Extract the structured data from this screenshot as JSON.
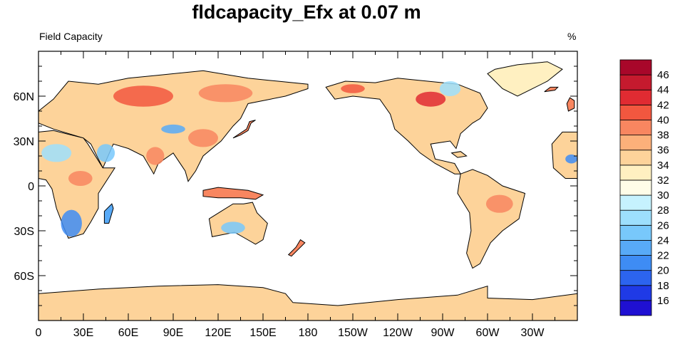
{
  "title": "fldcapacity_Efx at 0.07 m",
  "left_string": "Field Capacity",
  "right_string": "%",
  "x_ticks": [
    {
      "lon": 0,
      "label": "0"
    },
    {
      "lon": 30,
      "label": "30E"
    },
    {
      "lon": 60,
      "label": "60E"
    },
    {
      "lon": 90,
      "label": "90E"
    },
    {
      "lon": 120,
      "label": "120E"
    },
    {
      "lon": 150,
      "label": "150E"
    },
    {
      "lon": 180,
      "label": "180"
    },
    {
      "lon": 210,
      "label": "150W"
    },
    {
      "lon": 240,
      "label": "120W"
    },
    {
      "lon": 270,
      "label": "90W"
    },
    {
      "lon": 300,
      "label": "60W"
    },
    {
      "lon": 330,
      "label": "30W"
    }
  ],
  "y_ticks": [
    {
      "lat": 60,
      "label": "60N"
    },
    {
      "lat": 30,
      "label": "30N"
    },
    {
      "lat": 0,
      "label": "0"
    },
    {
      "lat": -30,
      "label": "30S"
    },
    {
      "lat": -60,
      "label": "60S"
    }
  ],
  "colorbar": {
    "labels": [
      "16",
      "18",
      "20",
      "22",
      "24",
      "26",
      "28",
      "30",
      "32",
      "34",
      "36",
      "38",
      "40",
      "42",
      "44",
      "46"
    ],
    "colors": [
      "#1f10d2",
      "#1f3ae6",
      "#2c64ef",
      "#3e8cf4",
      "#58aaf7",
      "#78c8fb",
      "#9ddffd",
      "#c6f2fe",
      "#fffde8",
      "#fff0c1",
      "#fdd39a",
      "#fcb07a",
      "#f88660",
      "#f2573f",
      "#e02b32",
      "#c51a2e",
      "#a8072a"
    ]
  },
  "land": [
    {
      "name": "antarctica",
      "color": "#fdd39a",
      "pts": [
        [
          0,
          -72
        ],
        [
          40,
          -69
        ],
        [
          80,
          -67
        ],
        [
          120,
          -66
        ],
        [
          150,
          -68
        ],
        [
          165,
          -72
        ],
        [
          170,
          -78
        ],
        [
          200,
          -80
        ],
        [
          240,
          -76
        ],
        [
          280,
          -73
        ],
        [
          300,
          -67
        ],
        [
          300,
          -75
        ],
        [
          330,
          -76
        ],
        [
          360,
          -72
        ],
        [
          360,
          -90
        ],
        [
          0,
          -90
        ]
      ]
    },
    {
      "name": "eurasia",
      "color": "#fdd39a",
      "pts": [
        [
          0,
          50
        ],
        [
          10,
          58
        ],
        [
          20,
          70
        ],
        [
          40,
          68
        ],
        [
          60,
          72
        ],
        [
          80,
          74
        ],
        [
          110,
          77
        ],
        [
          140,
          72
        ],
        [
          160,
          70
        ],
        [
          180,
          68
        ],
        [
          180,
          65
        ],
        [
          165,
          60
        ],
        [
          155,
          58
        ],
        [
          140,
          55
        ],
        [
          135,
          45
        ],
        [
          130,
          40
        ],
        [
          122,
          30
        ],
        [
          110,
          20
        ],
        [
          105,
          10
        ],
        [
          100,
          3
        ],
        [
          98,
          10
        ],
        [
          90,
          22
        ],
        [
          80,
          15
        ],
        [
          77,
          8
        ],
        [
          70,
          20
        ],
        [
          60,
          25
        ],
        [
          50,
          28
        ],
        [
          43,
          12
        ],
        [
          35,
          28
        ],
        [
          30,
          32
        ],
        [
          10,
          38
        ],
        [
          0,
          42
        ]
      ]
    },
    {
      "name": "africa",
      "color": "#fdd39a",
      "pts": [
        [
          0,
          36
        ],
        [
          10,
          37
        ],
        [
          30,
          32
        ],
        [
          33,
          28
        ],
        [
          43,
          12
        ],
        [
          51,
          12
        ],
        [
          40,
          -5
        ],
        [
          40,
          -15
        ],
        [
          35,
          -24
        ],
        [
          30,
          -32
        ],
        [
          20,
          -35
        ],
        [
          17,
          -28
        ],
        [
          12,
          -15
        ],
        [
          9,
          -2
        ],
        [
          5,
          4
        ],
        [
          0,
          5
        ]
      ]
    },
    {
      "name": "australia",
      "color": "#fdd39a",
      "pts": [
        [
          114,
          -22
        ],
        [
          122,
          -17
        ],
        [
          130,
          -12
        ],
        [
          137,
          -12
        ],
        [
          143,
          -11
        ],
        [
          146,
          -18
        ],
        [
          153,
          -25
        ],
        [
          150,
          -36
        ],
        [
          145,
          -39
        ],
        [
          138,
          -35
        ],
        [
          131,
          -31
        ],
        [
          116,
          -34
        ]
      ]
    },
    {
      "name": "north-america",
      "color": "#fdd39a",
      "pts": [
        [
          192,
          66
        ],
        [
          205,
          70
        ],
        [
          225,
          69
        ],
        [
          240,
          72
        ],
        [
          260,
          70
        ],
        [
          280,
          68
        ],
        [
          295,
          62
        ],
        [
          300,
          52
        ],
        [
          295,
          45
        ],
        [
          290,
          42
        ],
        [
          282,
          35
        ],
        [
          279,
          25
        ],
        [
          275,
          30
        ],
        [
          262,
          28
        ],
        [
          265,
          18
        ],
        [
          278,
          15
        ],
        [
          282,
          8
        ],
        [
          278,
          8
        ],
        [
          265,
          15
        ],
        [
          255,
          22
        ],
        [
          247,
          30
        ],
        [
          238,
          38
        ],
        [
          235,
          48
        ],
        [
          228,
          58
        ],
        [
          210,
          60
        ],
        [
          198,
          58
        ],
        [
          195,
          62
        ]
      ]
    },
    {
      "name": "south-america",
      "color": "#fdd39a",
      "pts": [
        [
          282,
          8
        ],
        [
          290,
          11
        ],
        [
          300,
          7
        ],
        [
          310,
          0
        ],
        [
          325,
          -5
        ],
        [
          321,
          -22
        ],
        [
          310,
          -30
        ],
        [
          302,
          -38
        ],
        [
          295,
          -52
        ],
        [
          290,
          -55
        ],
        [
          286,
          -45
        ],
        [
          289,
          -30
        ],
        [
          288,
          -18
        ],
        [
          280,
          -5
        ],
        [
          281,
          2
        ]
      ]
    },
    {
      "name": "greenland",
      "color": "#fff0c1",
      "pts": [
        [
          305,
          78
        ],
        [
          320,
          81
        ],
        [
          340,
          83
        ],
        [
          350,
          78
        ],
        [
          340,
          70
        ],
        [
          320,
          60
        ],
        [
          310,
          65
        ],
        [
          300,
          75
        ]
      ]
    },
    {
      "name": "indonesia",
      "color": "#f88660",
      "pts": [
        [
          110,
          -3
        ],
        [
          120,
          -1
        ],
        [
          130,
          -2
        ],
        [
          140,
          -3
        ],
        [
          150,
          -6
        ],
        [
          145,
          -9
        ],
        [
          135,
          -8
        ],
        [
          120,
          -8
        ],
        [
          110,
          -7
        ]
      ]
    },
    {
      "name": "japan",
      "color": "#f88660",
      "pts": [
        [
          130,
          32
        ],
        [
          135,
          34
        ],
        [
          140,
          37
        ],
        [
          142,
          42
        ],
        [
          145,
          44
        ],
        [
          141,
          43
        ],
        [
          139,
          38
        ],
        [
          133,
          34
        ]
      ]
    },
    {
      "name": "britain",
      "color": "#f88660",
      "pts": [
        [
          354,
          50
        ],
        [
          358,
          52
        ],
        [
          358,
          57
        ],
        [
          355,
          59
        ],
        [
          353,
          55
        ]
      ]
    },
    {
      "name": "madagascar",
      "color": "#58aaf7",
      "pts": [
        [
          44,
          -25
        ],
        [
          47,
          -25
        ],
        [
          50,
          -15
        ],
        [
          49,
          -12
        ],
        [
          44,
          -17
        ]
      ]
    },
    {
      "name": "new-zealand",
      "color": "#f88660",
      "pts": [
        [
          167,
          -46
        ],
        [
          172,
          -41
        ],
        [
          175,
          -36
        ],
        [
          178,
          -38
        ],
        [
          174,
          -42
        ],
        [
          169,
          -47
        ]
      ]
    },
    {
      "name": "west-africa-edge",
      "color": "#fdd39a",
      "pts": [
        [
          343,
          28
        ],
        [
          350,
          36
        ],
        [
          360,
          36
        ],
        [
          360,
          5
        ],
        [
          352,
          5
        ],
        [
          344,
          12
        ]
      ]
    },
    {
      "name": "cuba",
      "color": "#fdd39a",
      "pts": [
        [
          276,
          22
        ],
        [
          282,
          23
        ],
        [
          286,
          20
        ],
        [
          280,
          19
        ]
      ]
    },
    {
      "name": "iceland",
      "color": "#f88660",
      "pts": [
        [
          338,
          63
        ],
        [
          342,
          66
        ],
        [
          347,
          66
        ],
        [
          345,
          64
        ]
      ]
    }
  ],
  "patches": [
    {
      "name": "siberia-red",
      "color": "#f2573f",
      "cx": 70,
      "cy": 60,
      "rx": 20,
      "ry": 7
    },
    {
      "name": "east-siberia-red",
      "color": "#f88660",
      "cx": 125,
      "cy": 62,
      "rx": 18,
      "ry": 6
    },
    {
      "name": "china-red",
      "color": "#f88660",
      "cx": 110,
      "cy": 32,
      "rx": 10,
      "ry": 6
    },
    {
      "name": "india-red",
      "color": "#f88660",
      "cx": 78,
      "cy": 20,
      "rx": 6,
      "ry": 6
    },
    {
      "name": "central-asia-blue",
      "color": "#58aaf7",
      "cx": 90,
      "cy": 38,
      "rx": 8,
      "ry": 3
    },
    {
      "name": "arabia-blue",
      "color": "#78c8fb",
      "cx": 45,
      "cy": 22,
      "rx": 6,
      "ry": 6
    },
    {
      "name": "sahara-blue",
      "color": "#9ddffd",
      "cx": 12,
      "cy": 22,
      "rx": 10,
      "ry": 6
    },
    {
      "name": "southern-africa-blue",
      "color": "#3e8cf4",
      "cx": 22,
      "cy": -25,
      "rx": 7,
      "ry": 9
    },
    {
      "name": "east-africa-red",
      "color": "#f88660",
      "cx": 28,
      "cy": 5,
      "rx": 8,
      "ry": 5
    },
    {
      "name": "australia-blue",
      "color": "#78c8fb",
      "cx": 130,
      "cy": -28,
      "rx": 8,
      "ry": 4
    },
    {
      "name": "canada-red",
      "color": "#e02b32",
      "cx": 262,
      "cy": 58,
      "rx": 10,
      "ry": 5
    },
    {
      "name": "alaska-red",
      "color": "#f2573f",
      "cx": 210,
      "cy": 65,
      "rx": 8,
      "ry": 3
    },
    {
      "name": "hudson-blue",
      "color": "#9ddffd",
      "cx": 275,
      "cy": 65,
      "rx": 7,
      "ry": 5
    },
    {
      "name": "brazil-red",
      "color": "#f88660",
      "cx": 308,
      "cy": -12,
      "rx": 9,
      "ry": 6
    },
    {
      "name": "west-africa-blue",
      "color": "#3e8cf4",
      "cx": 356,
      "cy": 18,
      "rx": 4,
      "ry": 3
    }
  ]
}
